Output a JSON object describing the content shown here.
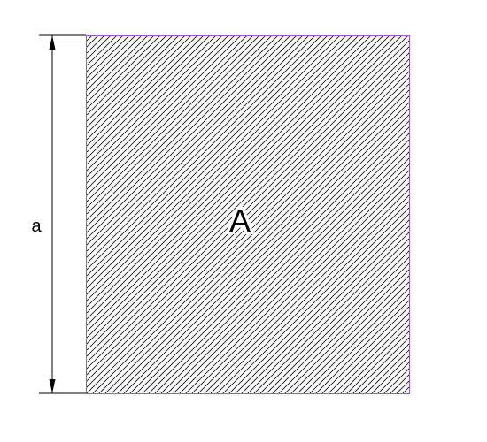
{
  "diagram": {
    "area_label": "A",
    "side_label": "a"
  },
  "colors": {
    "square_outline": "#9b59d0",
    "hatch": "#1a1a1a",
    "dimension": "#000000",
    "background": "#ffffff"
  }
}
